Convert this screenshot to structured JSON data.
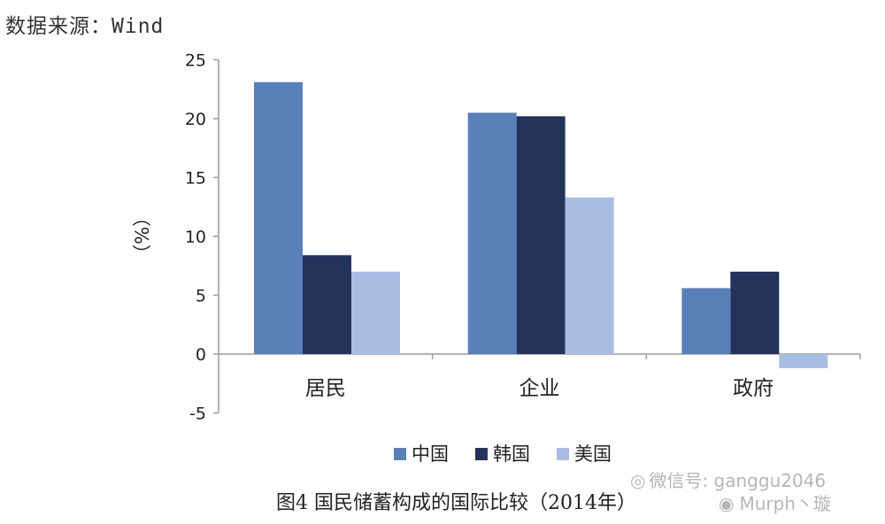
{
  "source_text": "数据来源：Wind",
  "caption": "图4 国民储蓄构成的国际比较（2014年）",
  "watermark": {
    "line1": "微信号: ganggu2046",
    "line2": "Murph丶璇"
  },
  "colors": {
    "china": "#5b7fb8",
    "korea": "#24335a",
    "usa": "#a9bde3",
    "axis": "#9a9a9a"
  },
  "chart_data": {
    "type": "bar",
    "categories": [
      "居民",
      "企业",
      "政府"
    ],
    "series": [
      {
        "name": "中国",
        "values": [
          23.1,
          20.5,
          5.6
        ],
        "color_key": "china"
      },
      {
        "name": "韩国",
        "values": [
          8.4,
          20.2,
          7.0
        ],
        "color_key": "korea"
      },
      {
        "name": "美国",
        "values": [
          7.0,
          13.3,
          -1.2
        ],
        "color_key": "usa"
      }
    ],
    "ylabel": "（%）",
    "ylim": [
      -5,
      25
    ],
    "yticks": [
      -5,
      0,
      5,
      10,
      15,
      20,
      25
    ],
    "grid": false,
    "legend": "bottom-center"
  }
}
